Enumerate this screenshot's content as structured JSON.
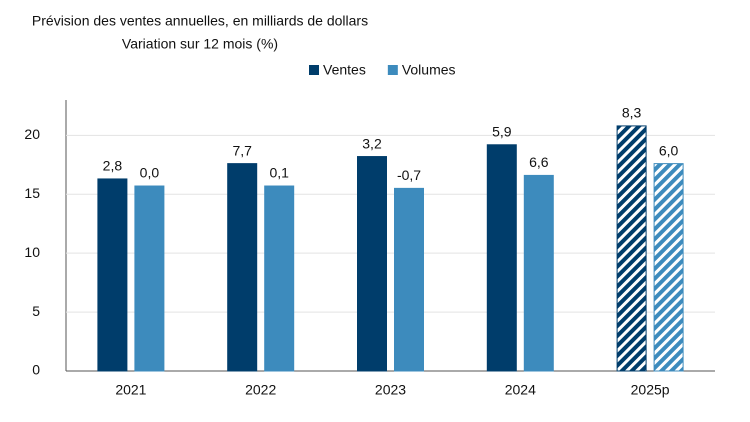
{
  "chart_data": {
    "type": "bar",
    "title": "Prévision des ventes annuelles, en milliards de dollars",
    "subtitle": "Variation sur 12 mois (%)",
    "categories": [
      "2021",
      "2022",
      "2023",
      "2024",
      "2025p"
    ],
    "series": [
      {
        "name": "Ventes",
        "color": "#003d6b",
        "values": [
          16.3,
          17.6,
          18.2,
          19.2,
          20.8
        ],
        "change_labels": [
          "2,8",
          "7,7",
          "3,2",
          "5,9",
          "8,3"
        ]
      },
      {
        "name": "Volumes",
        "color": "#3d8bbd",
        "values": [
          15.7,
          15.7,
          15.5,
          16.6,
          17.6
        ],
        "change_labels": [
          "0,0",
          "0,1",
          "-0,7",
          "6,6",
          "6,0"
        ]
      }
    ],
    "hatched": [
      false,
      false,
      false,
      false,
      true
    ],
    "ylim": [
      0,
      23
    ],
    "yticks": [
      0,
      5,
      10,
      15,
      20
    ],
    "grid": true
  }
}
